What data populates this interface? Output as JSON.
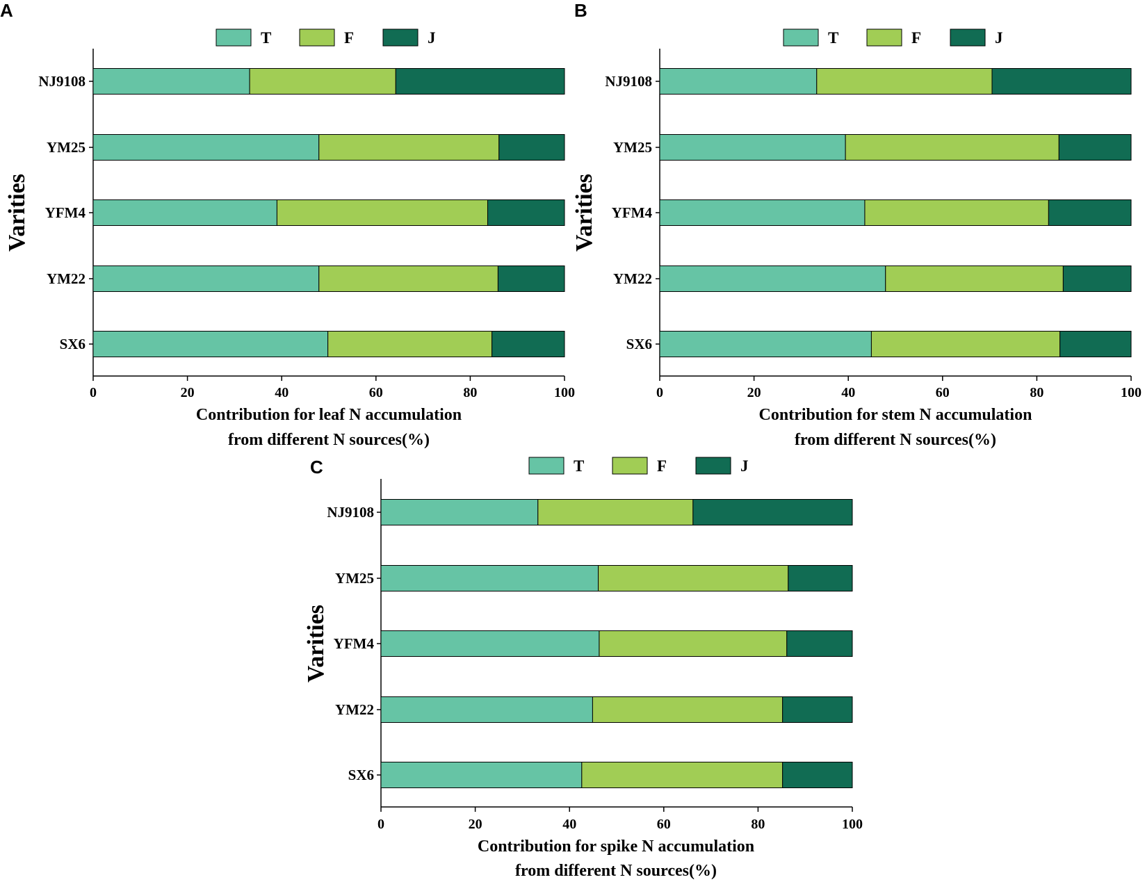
{
  "colors": {
    "T": "#66c4a5",
    "F": "#a1cd55",
    "J": "#116c53"
  },
  "chart_data": [
    {
      "type": "bar",
      "orientation": "horizontal",
      "stacked": true,
      "panel": "A",
      "categories": [
        "NJ9108",
        "YM25",
        "YFM4",
        "YM22",
        "SX6"
      ],
      "series": [
        {
          "name": "T",
          "values": [
            33.2,
            47.9,
            39.0,
            47.9,
            49.8
          ]
        },
        {
          "name": "F",
          "values": [
            31.0,
            38.2,
            44.7,
            38.0,
            34.8
          ]
        },
        {
          "name": "J",
          "values": [
            35.8,
            13.9,
            16.3,
            14.1,
            15.4
          ]
        }
      ],
      "xlabel_line1": "Contribution for leaf N accumulation",
      "xlabel_line2": "from different N sources(%)",
      "ylabel": "Varities",
      "xticks": [
        "0",
        "20",
        "40",
        "60",
        "80",
        "100"
      ],
      "xlim": [
        0,
        100
      ],
      "legend": "top"
    },
    {
      "type": "bar",
      "orientation": "horizontal",
      "stacked": true,
      "panel": "B",
      "categories": [
        "NJ9108",
        "YM25",
        "YFM4",
        "YM22",
        "SX6"
      ],
      "series": [
        {
          "name": "T",
          "values": [
            33.3,
            39.4,
            43.5,
            47.9,
            44.9
          ]
        },
        {
          "name": "F",
          "values": [
            37.2,
            45.3,
            39.0,
            37.7,
            40.0
          ]
        },
        {
          "name": "J",
          "values": [
            29.5,
            15.3,
            17.5,
            14.4,
            15.1
          ]
        }
      ],
      "xlabel_line1": "Contribution for stem N accumulation",
      "xlabel_line2": "from different N sources(%)",
      "ylabel": "Varities",
      "xticks": [
        "0",
        "20",
        "40",
        "60",
        "80",
        "100"
      ],
      "xlim": [
        0,
        100
      ],
      "legend": "top"
    },
    {
      "type": "bar",
      "orientation": "horizontal",
      "stacked": true,
      "panel": "C",
      "categories": [
        "NJ9108",
        "YM25",
        "YFM4",
        "YM22",
        "SX6"
      ],
      "series": [
        {
          "name": "T",
          "values": [
            33.3,
            46.1,
            46.3,
            44.9,
            42.6
          ]
        },
        {
          "name": "F",
          "values": [
            32.9,
            40.3,
            39.8,
            40.3,
            42.6
          ]
        },
        {
          "name": "J",
          "values": [
            33.8,
            13.6,
            13.9,
            14.8,
            14.8
          ]
        }
      ],
      "xlabel_line1": "Contribution for spike N accumulation",
      "xlabel_line2": "from different N sources(%)",
      "ylabel": "Varities",
      "xticks": [
        "0",
        "20",
        "40",
        "60",
        "80",
        "100"
      ],
      "xlim": [
        0,
        100
      ],
      "legend": "top"
    }
  ]
}
